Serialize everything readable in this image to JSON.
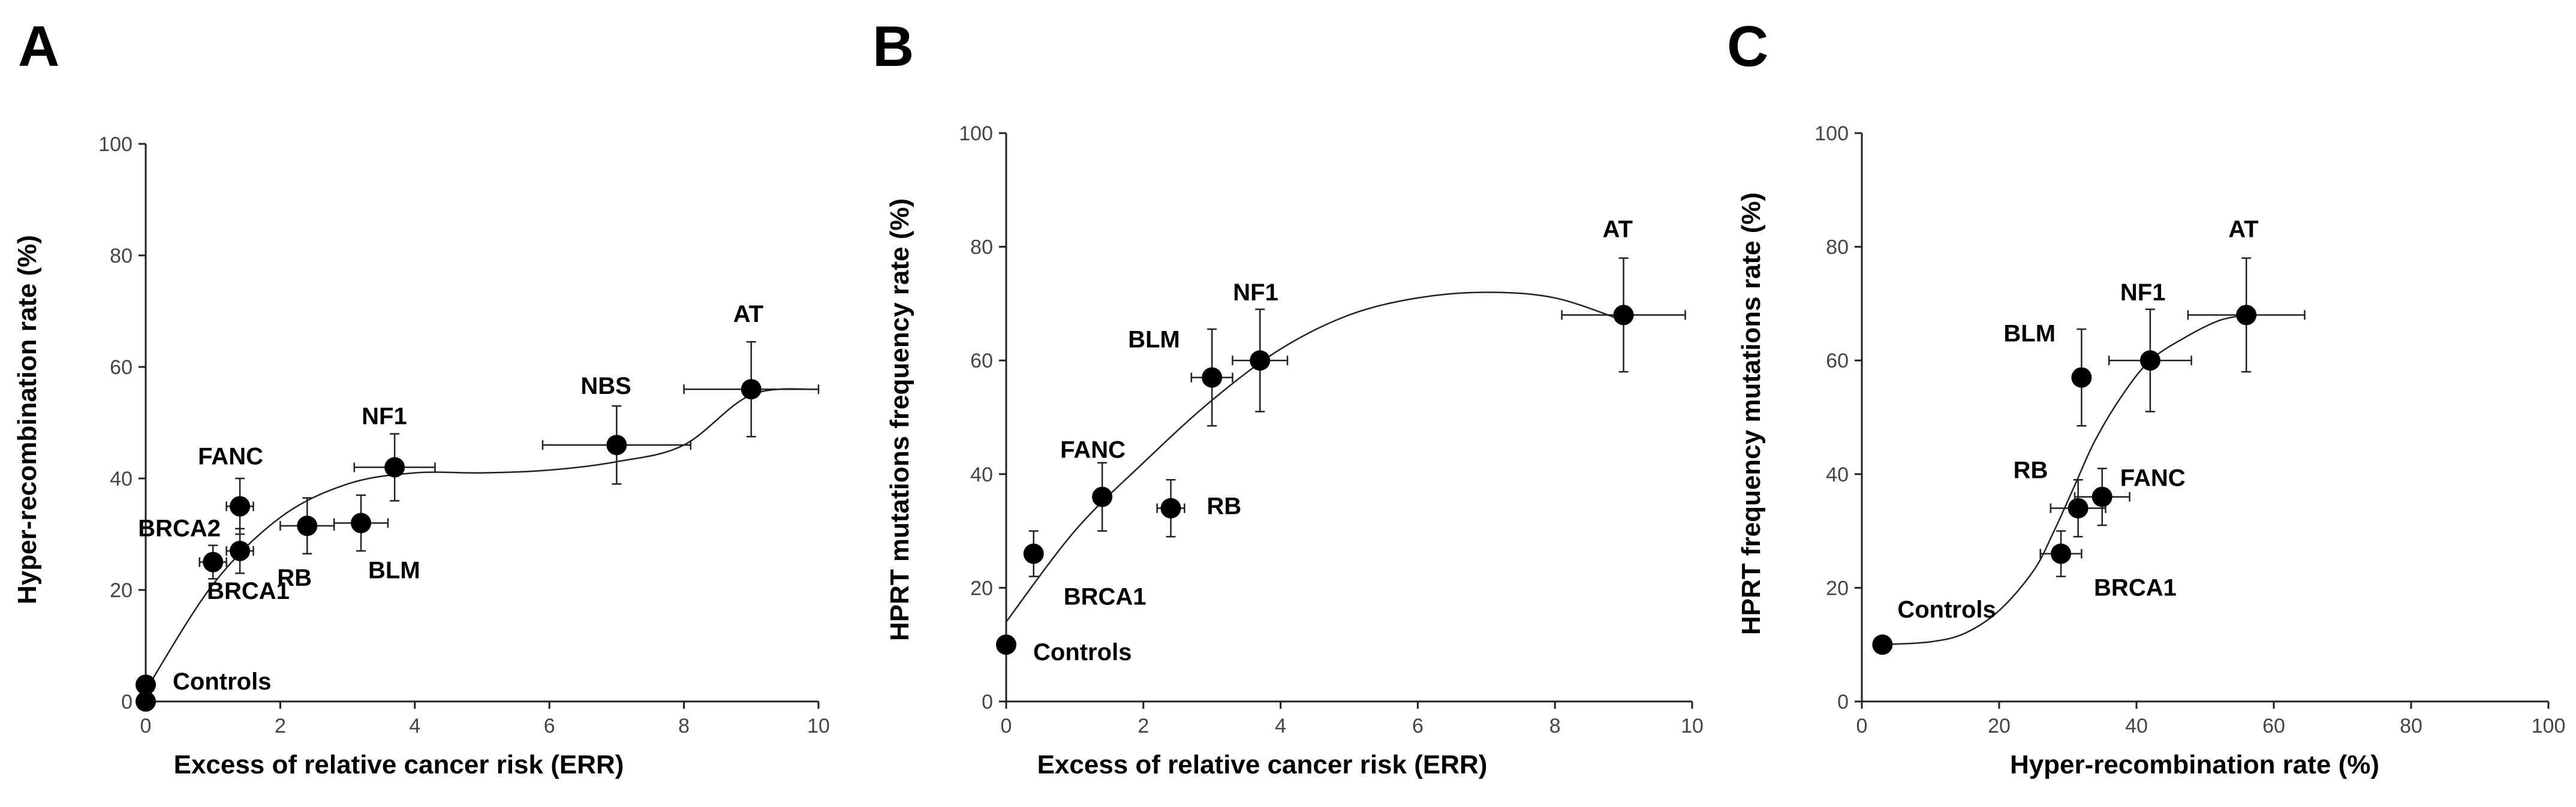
{
  "figure": {
    "panels": [
      "A",
      "B",
      "C"
    ]
  },
  "chart_data": [
    {
      "panel": "A",
      "type": "scatter",
      "xlabel": "Excess of relative cancer risk (ERR)",
      "ylabel": "Hyper-recombination rate (%)",
      "xlim": [
        0,
        10
      ],
      "ylim": [
        0,
        100
      ],
      "xticks": [
        0,
        2,
        4,
        6,
        8,
        10
      ],
      "yticks": [
        0,
        20,
        40,
        60,
        80,
        100
      ],
      "points": [
        {
          "label": "Controls",
          "x": 0,
          "y": 0,
          "xerr": 0,
          "yerr": 0
        },
        {
          "label": "",
          "x": 0,
          "y": 3,
          "xerr": 0,
          "yerr": 0
        },
        {
          "label": "BRCA2",
          "x": 1.0,
          "y": 25,
          "xerr": 0.2,
          "yerr": 3
        },
        {
          "label": "BRCA1",
          "x": 1.4,
          "y": 27,
          "xerr": 0.2,
          "yerr": 4
        },
        {
          "label": "FANC",
          "x": 1.4,
          "y": 35,
          "xerr": 0.2,
          "yerr": 5
        },
        {
          "label": "RB",
          "x": 2.4,
          "y": 31.5,
          "xerr": 0.4,
          "yerr": 5
        },
        {
          "label": "BLM",
          "x": 3.2,
          "y": 32,
          "xerr": 0.4,
          "yerr": 5
        },
        {
          "label": "NF1",
          "x": 3.7,
          "y": 42,
          "xerr": 0.6,
          "yerr": 6
        },
        {
          "label": "NBS",
          "x": 7.0,
          "y": 46,
          "xerr": 1.1,
          "yerr": 7
        },
        {
          "label": "AT",
          "x": 9.0,
          "y": 56,
          "xerr": 1.0,
          "yerr": 8.5
        }
      ],
      "fit_curve": {
        "x": [
          0,
          1,
          2,
          3,
          4,
          5,
          6,
          7,
          8,
          9,
          10
        ],
        "y": [
          2,
          21,
          33,
          39,
          41,
          41,
          41.5,
          43,
          46,
          55,
          56
        ]
      }
    },
    {
      "panel": "B",
      "type": "scatter",
      "xlabel": "Excess of relative cancer risk (ERR)",
      "ylabel": "HPRT mutations frequency rate (%)",
      "xlim": [
        0,
        10
      ],
      "ylim": [
        0,
        100
      ],
      "xticks": [
        0,
        2,
        4,
        6,
        8,
        10
      ],
      "yticks": [
        0,
        20,
        40,
        60,
        80,
        100
      ],
      "points": [
        {
          "label": "Controls",
          "x": 0,
          "y": 10,
          "xerr": 0,
          "yerr": 0
        },
        {
          "label": "BRCA1",
          "x": 0.4,
          "y": 26,
          "xerr": 0,
          "yerr": 4
        },
        {
          "label": "FANC",
          "x": 1.4,
          "y": 36,
          "xerr": 0,
          "yerr": 6
        },
        {
          "label": "RB",
          "x": 2.4,
          "y": 34,
          "xerr": 0.2,
          "yerr": 5
        },
        {
          "label": "BLM",
          "x": 3.0,
          "y": 57,
          "xerr": 0.3,
          "yerr": 8.5
        },
        {
          "label": "NF1",
          "x": 3.7,
          "y": 60,
          "xerr": 0.4,
          "yerr": 9
        },
        {
          "label": "AT",
          "x": 9.0,
          "y": 68,
          "xerr": 0.9,
          "yerr": 10
        }
      ],
      "fit_curve": {
        "x": [
          0,
          1,
          2,
          3,
          4,
          5,
          6,
          7,
          8,
          9
        ],
        "y": [
          14,
          30,
          42,
          53,
          62,
          68,
          71,
          72,
          71,
          67
        ]
      }
    },
    {
      "panel": "C",
      "type": "scatter",
      "xlabel": "Hyper-recombination rate (%)",
      "ylabel": "HPRT frequency mutations rate (%)",
      "xlim": [
        0,
        100
      ],
      "ylim": [
        0,
        100
      ],
      "xticks": [
        0,
        20,
        40,
        60,
        80,
        100
      ],
      "yticks": [
        0,
        20,
        40,
        60,
        80,
        100
      ],
      "points": [
        {
          "label": "Controls",
          "x": 3,
          "y": 10,
          "xerr": 0,
          "yerr": 0
        },
        {
          "label": "BRCA1",
          "x": 29,
          "y": 26,
          "xerr": 3,
          "yerr": 4
        },
        {
          "label": "RB",
          "x": 31.5,
          "y": 34,
          "xerr": 4,
          "yerr": 5
        },
        {
          "label": "FANC",
          "x": 35,
          "y": 36,
          "xerr": 4,
          "yerr": 5
        },
        {
          "label": "BLM",
          "x": 32,
          "y": 57,
          "xerr": 0,
          "yerr": 8.5
        },
        {
          "label": "NF1",
          "x": 42,
          "y": 60,
          "xerr": 6,
          "yerr": 9
        },
        {
          "label": "AT",
          "x": 56,
          "y": 68,
          "xerr": 8.5,
          "yerr": 10
        }
      ],
      "fit_curve": {
        "x": [
          3,
          10,
          15,
          20,
          25,
          28,
          31,
          34,
          38,
          42,
          47,
          52,
          56
        ],
        "y": [
          10,
          10.5,
          12,
          16,
          23,
          30,
          38,
          46,
          54,
          60,
          64,
          67,
          68
        ]
      }
    }
  ]
}
